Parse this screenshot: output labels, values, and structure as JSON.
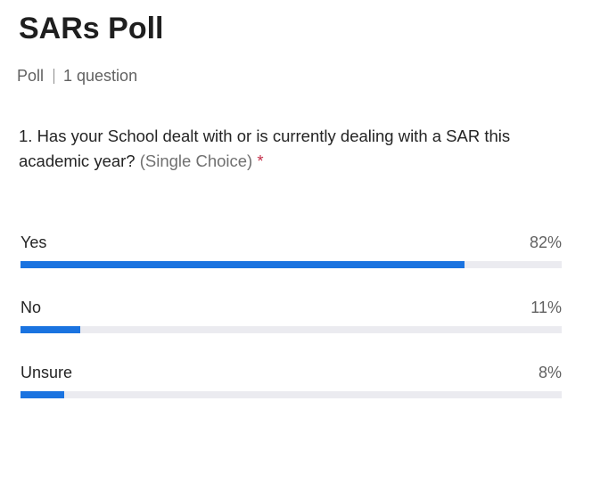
{
  "poll": {
    "title": "SARs Poll",
    "type_label": "Poll",
    "question_count": "1 question"
  },
  "question": {
    "text": "1. Has your School dealt with or is currently dealing with a SAR this academic year?",
    "choice_type": "(Single Choice)",
    "required_mark": "*"
  },
  "options": [
    {
      "label": "Yes",
      "percent_text": "82%",
      "fraction": 0.82
    },
    {
      "label": "No",
      "percent_text": "11%",
      "fraction": 0.11
    },
    {
      "label": "Unsure",
      "percent_text": "8%",
      "fraction": 0.08
    }
  ],
  "colors": {
    "bar_fill": "#1a73e0",
    "bar_track": "#ebebf0",
    "required": "#c4314b"
  }
}
